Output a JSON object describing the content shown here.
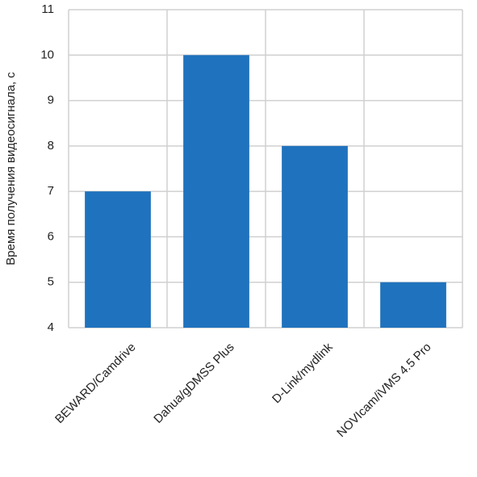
{
  "chart_data": {
    "type": "bar",
    "y_label": "Время получения видеосигнала, с",
    "categories": [
      "BEWARD/Camdrive",
      "Dahua/gDMSS Plus",
      "D-Link/mydlink",
      "NOVIcam/iVMS 4.5 Pro"
    ],
    "values": [
      7,
      10,
      8,
      5
    ],
    "color": "#1f72bd",
    "ylim": [
      4,
      11
    ],
    "yticks": [
      4,
      5,
      6,
      7,
      8,
      9,
      10,
      11
    ],
    "grid": true
  }
}
